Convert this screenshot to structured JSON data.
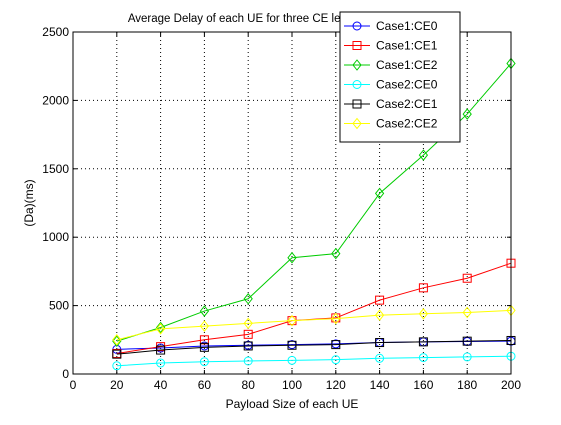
{
  "chart_data": {
    "type": "line",
    "title": "Average Delay of each UE  for three CE levels [M=50][M=10/sec]",
    "xlabel": "Payload Size of each UE",
    "ylabel": "(Da)(ms)",
    "xlim": [
      0,
      200
    ],
    "ylim": [
      0,
      2500
    ],
    "xticks": [
      "0",
      "20",
      "40",
      "60",
      "80",
      "100",
      "120",
      "140",
      "160",
      "180",
      "200"
    ],
    "yticks": [
      "0",
      "500",
      "1000",
      "1500",
      "2000",
      "2500"
    ],
    "grid": true,
    "legend_position": "top-right",
    "x": [
      20,
      40,
      60,
      80,
      100,
      120,
      140,
      160,
      180,
      200
    ],
    "series": [
      {
        "name": "Case1:CE0",
        "color": "#0000ff",
        "marker": "circle",
        "values": [
          180,
          190,
          205,
          210,
          215,
          220,
          230,
          235,
          238,
          240
        ]
      },
      {
        "name": "Case1:CE1",
        "color": "#ff0000",
        "marker": "square",
        "values": [
          150,
          200,
          250,
          290,
          390,
          410,
          540,
          630,
          700,
          810
        ]
      },
      {
        "name": "Case1:CE2",
        "color": "#00cc00",
        "marker": "diamond",
        "values": [
          240,
          340,
          460,
          550,
          850,
          880,
          1320,
          1600,
          1900,
          2270
        ]
      },
      {
        "name": "Case2:CE0",
        "color": "#00ffff",
        "marker": "circle",
        "values": [
          60,
          80,
          90,
          95,
          100,
          105,
          115,
          120,
          125,
          130
        ]
      },
      {
        "name": "Case2:CE1",
        "color": "#000000",
        "marker": "square",
        "values": [
          145,
          175,
          195,
          205,
          210,
          215,
          230,
          235,
          240,
          245
        ]
      },
      {
        "name": "Case2:CE2",
        "color": "#ffff00",
        "marker": "diamond",
        "values": [
          250,
          330,
          350,
          370,
          390,
          405,
          430,
          440,
          450,
          465
        ]
      }
    ]
  }
}
